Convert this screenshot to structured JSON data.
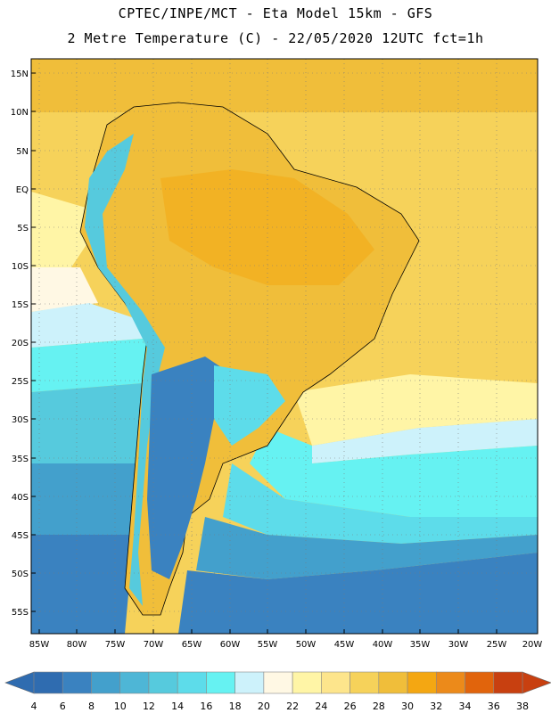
{
  "header": {
    "line1": "CPTEC/INPE/MCT -  Eta Model 15km - GFS",
    "line2": "2 Metre Temperature (C) - 22/05/2020 12UTC fct=1h"
  },
  "map": {
    "lat_labels": [
      "15N",
      "10N",
      "5N",
      "EQ",
      "5S",
      "10S",
      "15S",
      "20S",
      "25S",
      "30S",
      "35S",
      "40S",
      "45S",
      "50S",
      "55S"
    ],
    "lon_labels": [
      "85W",
      "80W",
      "75W",
      "70W",
      "65W",
      "60W",
      "55W",
      "50W",
      "45W",
      "40W",
      "35W",
      "30W",
      "25W",
      "20W"
    ]
  },
  "colorbar": {
    "labels": [
      "4",
      "6",
      "8",
      "10",
      "12",
      "14",
      "16",
      "18",
      "20",
      "22",
      "24",
      "26",
      "28",
      "30",
      "32",
      "34",
      "36",
      "38"
    ],
    "colors": [
      "#2f6cb0",
      "#3a82c0",
      "#43a0cc",
      "#4eb6d6",
      "#56cadd",
      "#5ddcea",
      "#66f2f2",
      "#cdf2fb",
      "#fff8e4",
      "#fff5a6",
      "#fde58c",
      "#f6d25a",
      "#f0be3a",
      "#f4a712",
      "#ec8a1a",
      "#e1640c",
      "#c84010"
    ]
  }
}
